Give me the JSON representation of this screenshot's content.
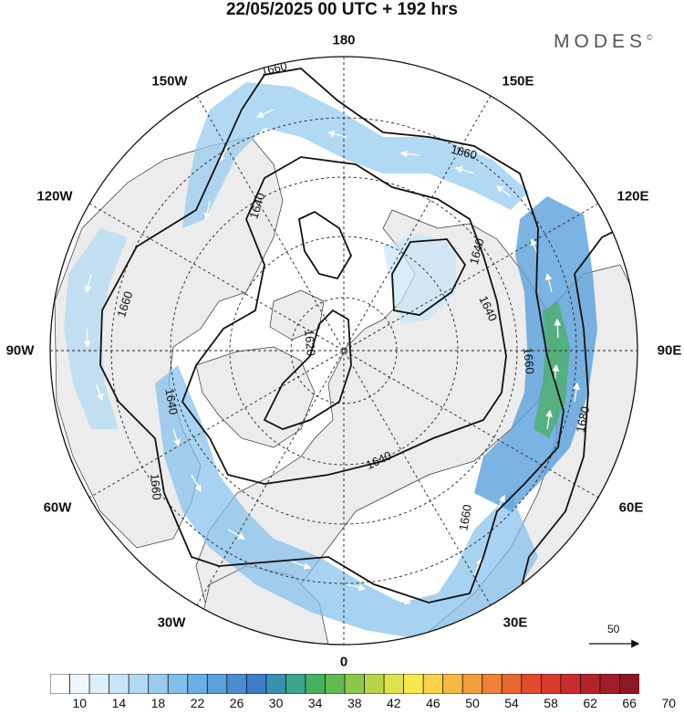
{
  "header": {
    "title": "22/05/2025  00 UTC  + 192 hrs",
    "brand": "MODES",
    "brand_mark": "©"
  },
  "map": {
    "longitude_labels": [
      "180",
      "150E",
      "120E",
      "90E",
      "60E",
      "30E",
      "0",
      "30W",
      "60W",
      "90W",
      "120W",
      "150W"
    ],
    "contour_labels": [
      "1660",
      "1660",
      "1640",
      "1660",
      "1640",
      "1640",
      "1620",
      "1640",
      "1640",
      "1660",
      "1660",
      "1660",
      "1680"
    ]
  },
  "vector_scale": {
    "value": "50"
  },
  "colorbar": {
    "tick_labels": [
      "10",
      "14",
      "18",
      "22",
      "26",
      "30",
      "34",
      "38",
      "42",
      "46",
      "50",
      "54",
      "58",
      "62",
      "66",
      "70"
    ],
    "colors": [
      "#ffffff",
      "#eef7fc",
      "#dceffa",
      "#c7e5f7",
      "#b0d9f3",
      "#98ccef",
      "#82bfeb",
      "#6aaee4",
      "#5aa0dc",
      "#4a8ed1",
      "#3d7dc6",
      "#3891b0",
      "#3ca58c",
      "#48b061",
      "#62bb4e",
      "#8bc84a",
      "#b5d446",
      "#dfe34a",
      "#f7e84c",
      "#f8d348",
      "#f8b843",
      "#f49d3c",
      "#ef8236",
      "#e86730",
      "#e14d2c",
      "#d83a2c",
      "#c92c2c",
      "#b5232a",
      "#a11d28",
      "#8f1826"
    ]
  }
}
